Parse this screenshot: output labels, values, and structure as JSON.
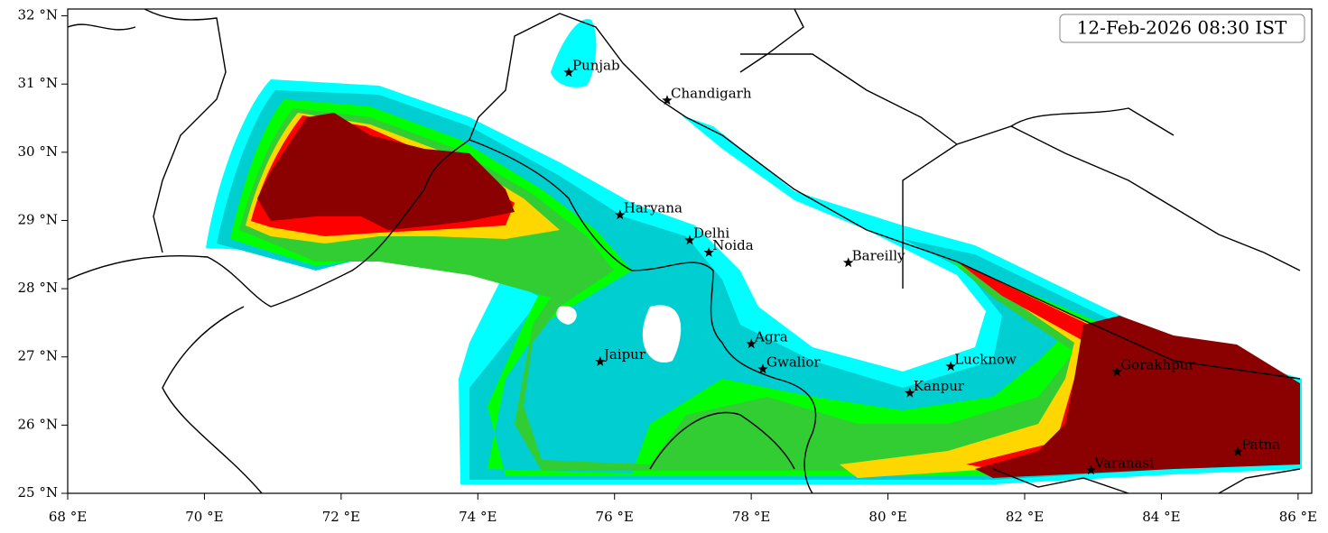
{
  "chart_data": {
    "type": "map",
    "title": "12-Feb-2026 08:30 IST",
    "xlim": [
      68,
      86.2
    ],
    "ylim": [
      25,
      32.1
    ],
    "xticks": [
      {
        "value": 68,
        "label": "68 °E"
      },
      {
        "value": 70,
        "label": "70 °E"
      },
      {
        "value": 72,
        "label": "72 °E"
      },
      {
        "value": 74,
        "label": "74 °E"
      },
      {
        "value": 76,
        "label": "76 °E"
      },
      {
        "value": 78,
        "label": "78 °E"
      },
      {
        "value": 80,
        "label": "80 °E"
      },
      {
        "value": 82,
        "label": "82 °E"
      },
      {
        "value": 84,
        "label": "84 °E"
      },
      {
        "value": 86,
        "label": "86 °E"
      }
    ],
    "yticks": [
      {
        "value": 25,
        "label": "25 °N"
      },
      {
        "value": 26,
        "label": "26 °N"
      },
      {
        "value": 27,
        "label": "27 °N"
      },
      {
        "value": 28,
        "label": "28 °N"
      },
      {
        "value": 29,
        "label": "29 °N"
      },
      {
        "value": 30,
        "label": "30 °N"
      },
      {
        "value": 31,
        "label": "31 °N"
      },
      {
        "value": 32,
        "label": "32 °N"
      }
    ],
    "cities": [
      {
        "name": "Punjab",
        "lon": 75.33,
        "lat": 31.17
      },
      {
        "name": "Chandigarh",
        "lon": 76.77,
        "lat": 30.76
      },
      {
        "name": "Haryana",
        "lon": 76.08,
        "lat": 29.08
      },
      {
        "name": "Delhi",
        "lon": 77.1,
        "lat": 28.71
      },
      {
        "name": "Noida",
        "lon": 77.38,
        "lat": 28.53
      },
      {
        "name": "Bareilly",
        "lon": 79.42,
        "lat": 28.38
      },
      {
        "name": "Agra",
        "lon": 78.0,
        "lat": 27.19
      },
      {
        "name": "Jaipur",
        "lon": 75.79,
        "lat": 26.93
      },
      {
        "name": "Gwalior",
        "lon": 78.17,
        "lat": 26.82
      },
      {
        "name": "Lucknow",
        "lon": 80.92,
        "lat": 26.86
      },
      {
        "name": "Kanpur",
        "lon": 80.32,
        "lat": 26.47
      },
      {
        "name": "Gorakhpur",
        "lon": 83.35,
        "lat": 26.78
      },
      {
        "name": "Varanasi",
        "lon": 82.97,
        "lat": 25.34
      },
      {
        "name": "Patna",
        "lon": 85.12,
        "lat": 25.61
      }
    ]
  }
}
